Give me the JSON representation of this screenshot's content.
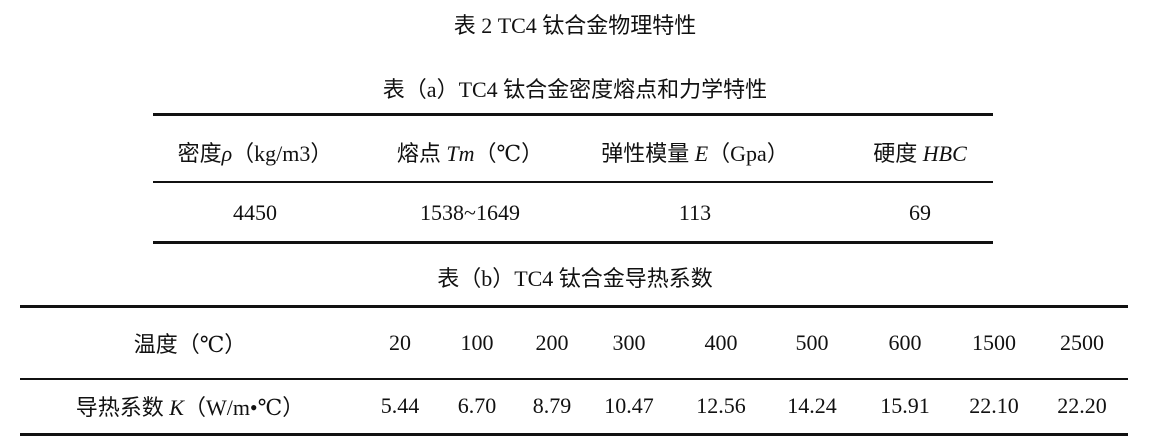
{
  "title": "表 2   TC4 钛合金物理特性",
  "table_a": {
    "caption": "表（a）TC4 钛合金密度熔点和力学特性",
    "headers": [
      {
        "pre": "密度",
        "ital": "ρ",
        "post": "（kg/m3）"
      },
      {
        "pre": "熔点 ",
        "ital": "Tm",
        "post": "（℃）"
      },
      {
        "pre": "弹性模量 ",
        "ital": "E",
        "post": "（Gpa）"
      },
      {
        "pre": "硬度 ",
        "ital": "HBC",
        "post": ""
      }
    ],
    "values": [
      "4450",
      "1538~1649",
      "113",
      "69"
    ]
  },
  "table_b": {
    "caption": "表（b）TC4 钛合金导热系数",
    "row_labels": [
      {
        "pre": "温度（℃）",
        "ital": "",
        "post": ""
      },
      {
        "pre": "导热系数 ",
        "ital": "K",
        "post": "（W/m•℃）"
      }
    ],
    "temperatures": [
      "20",
      "100",
      "200",
      "300",
      "400",
      "500",
      "600",
      "1500",
      "2500"
    ],
    "conductivity": [
      "5.44",
      "6.70",
      "8.79",
      "10.47",
      "12.56",
      "14.24",
      "15.91",
      "22.10",
      "22.20"
    ]
  }
}
